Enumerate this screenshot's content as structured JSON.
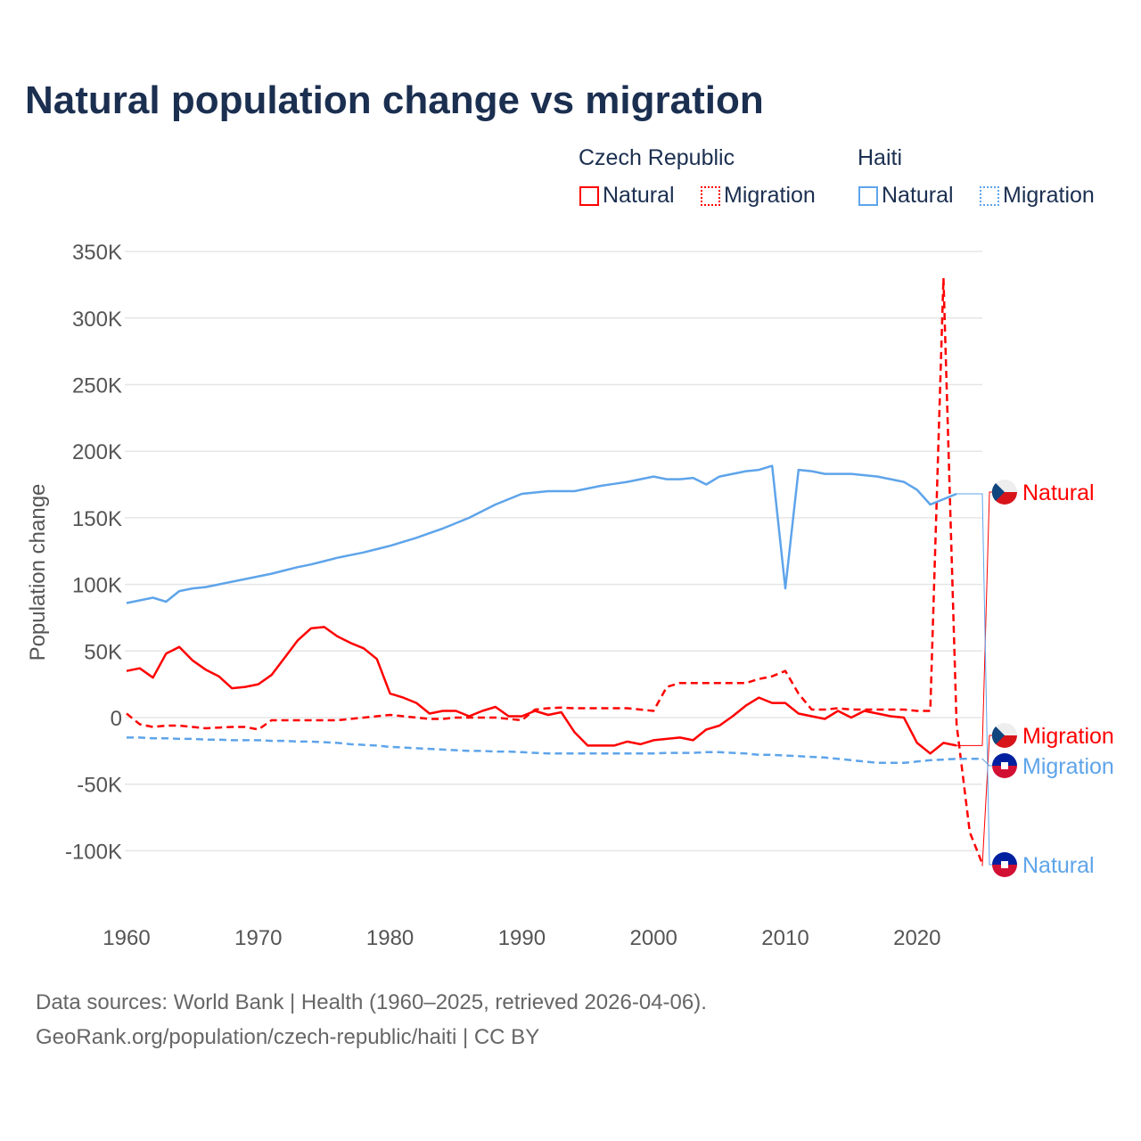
{
  "title": "Natural population change vs migration",
  "legend": {
    "groups": [
      {
        "name": "Czech Republic",
        "color": "#ff0000",
        "items": [
          "Natural",
          "Migration"
        ]
      },
      {
        "name": "Haiti",
        "color": "#5ea4ea",
        "items": [
          "Natural",
          "Migration"
        ]
      }
    ]
  },
  "footer": {
    "line1": "Data sources: World Bank | Health (1960–2025, retrieved 2026-04-06).",
    "line2": "GeoRank.org/population/czech-republic/haiti | CC BY"
  },
  "chart_data": {
    "type": "line",
    "title": "Natural population change vs migration",
    "xlabel": "",
    "ylabel": "Population change",
    "xlim": [
      1960,
      2025
    ],
    "ylim": [
      -130000,
      350000
    ],
    "x_ticks": [
      1960,
      1970,
      1980,
      1990,
      2000,
      2010,
      2020
    ],
    "x_tick_labels": [
      "1960",
      "1970",
      "1980",
      "1990",
      "2000",
      "2010",
      "2020"
    ],
    "y_ticks": [
      350000,
      300000,
      250000,
      200000,
      150000,
      100000,
      50000,
      0,
      -50000,
      -100000
    ],
    "y_tick_labels": [
      "350K",
      "300K",
      "250K",
      "200K",
      "150K",
      "100K",
      "50K",
      "0",
      "-50K",
      "-100K"
    ],
    "grid": true,
    "x_start": 1960,
    "series": [
      {
        "name": "Czech Republic Natural",
        "label": "Natural",
        "color": "#ff0000",
        "dash": false,
        "values_k": [
          35,
          37,
          30,
          48,
          53,
          43,
          36,
          31,
          22,
          23,
          25,
          32,
          45,
          58,
          67,
          68,
          61,
          56,
          52,
          44,
          18,
          15,
          11,
          3,
          5,
          5,
          1,
          5,
          8,
          1,
          1,
          5,
          2,
          4,
          -11,
          -21,
          -21,
          -21,
          -18,
          -20,
          -17,
          -16,
          -15,
          -17,
          -9,
          -6,
          1,
          9,
          15,
          11,
          11,
          3,
          1,
          -1,
          5,
          0,
          5,
          3,
          1,
          0,
          -19,
          -27,
          -19,
          -21
        ]
      },
      {
        "name": "Czech Republic Migration",
        "label": "Migration",
        "color": "#ff0000",
        "dash": true,
        "values_k": [
          3,
          -5,
          -7,
          -6,
          -6,
          -7,
          -8,
          -7.5,
          -7,
          -7,
          -9,
          -2,
          -2,
          -2,
          -2,
          -2,
          -2,
          -1,
          0,
          1,
          2,
          1,
          0,
          -1,
          -1,
          0,
          0,
          0,
          0,
          -1,
          -2,
          6,
          7,
          7.5,
          7,
          7,
          7,
          7,
          7,
          6,
          5,
          23,
          26,
          26,
          26,
          26,
          26,
          26,
          29,
          31,
          35,
          18,
          6,
          6,
          7,
          6,
          6,
          6,
          6,
          6,
          5,
          5,
          330,
          -5,
          -86,
          -111
        ]
      },
      {
        "name": "Haiti Natural",
        "label": "Natural",
        "color": "#5ea4ea",
        "dash": false,
        "values_k": [
          86,
          88,
          90,
          87,
          95,
          97,
          98,
          100,
          102,
          104,
          106,
          108,
          110.5,
          113,
          115,
          117.5,
          120,
          122,
          124,
          126.5,
          129,
          132,
          135,
          138.5,
          142,
          146,
          150,
          155,
          160,
          164,
          168,
          169,
          170,
          170,
          170,
          172,
          174,
          175.5,
          177,
          179,
          181,
          179,
          179,
          180,
          175,
          181,
          183,
          185,
          186,
          189,
          97,
          186,
          185,
          183,
          183,
          183,
          182,
          181,
          179,
          177,
          171,
          160,
          164,
          168
        ]
      },
      {
        "name": "Haiti Migration",
        "label": "Migration",
        "color": "#5ea4ea",
        "dash": true,
        "values_k": [
          -15,
          -15,
          -15.5,
          -15.5,
          -16,
          -16,
          -16.5,
          -16.5,
          -17,
          -17,
          -17,
          -17.5,
          -17.5,
          -18,
          -18,
          -18.5,
          -19,
          -20,
          -20.5,
          -21,
          -22,
          -22.5,
          -23,
          -23.5,
          -24,
          -24.5,
          -25,
          -25,
          -25.5,
          -25.5,
          -26,
          -26.5,
          -27,
          -27,
          -27,
          -27,
          -27,
          -27,
          -27,
          -27,
          -27,
          -26.5,
          -26.5,
          -26.5,
          -26,
          -26,
          -26.5,
          -27,
          -28,
          -28,
          -28.5,
          -29,
          -29.5,
          -30,
          -31,
          -32,
          -33,
          -34,
          -34,
          -34,
          -33,
          -32,
          -31.5,
          -31,
          -31,
          -31
        ]
      }
    ]
  }
}
